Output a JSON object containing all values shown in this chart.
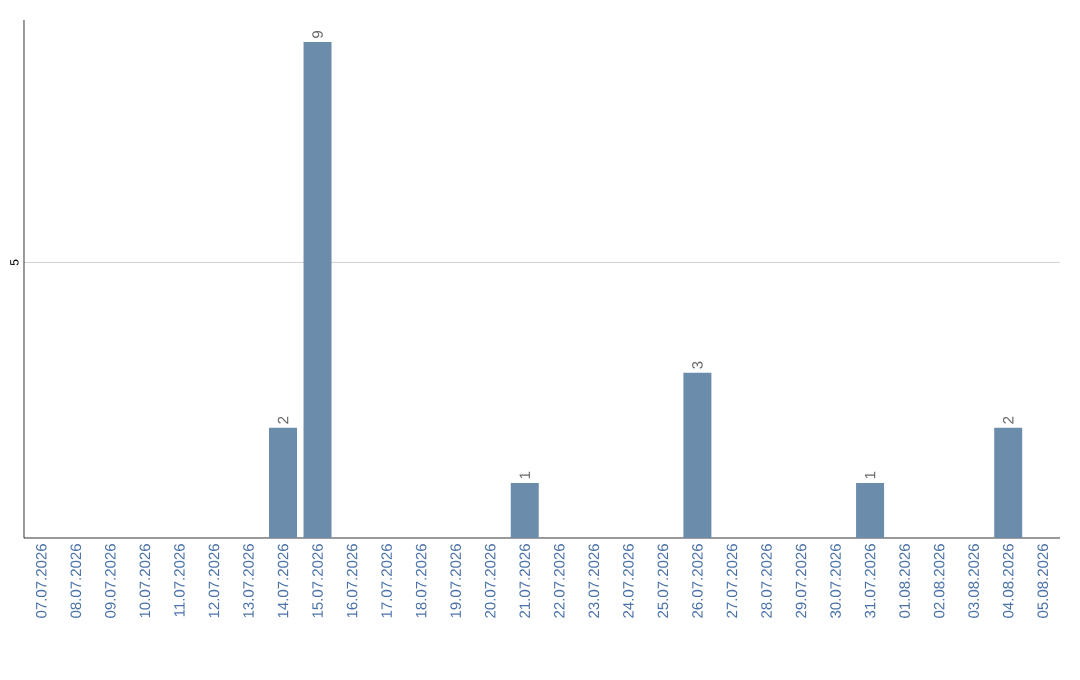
{
  "chart_data": {
    "type": "bar",
    "categories": [
      "07.07.2026",
      "08.07.2026",
      "09.07.2026",
      "10.07.2026",
      "11.07.2026",
      "12.07.2026",
      "13.07.2026",
      "14.07.2026",
      "15.07.2026",
      "16.07.2026",
      "17.07.2026",
      "18.07.2026",
      "19.07.2026",
      "20.07.2026",
      "21.07.2026",
      "22.07.2026",
      "23.07.2026",
      "24.07.2026",
      "25.07.2026",
      "26.07.2026",
      "27.07.2026",
      "28.07.2026",
      "29.07.2026",
      "30.07.2026",
      "31.07.2026",
      "01.08.2026",
      "02.08.2026",
      "03.08.2026",
      "04.08.2026",
      "05.08.2026"
    ],
    "values": [
      0,
      0,
      0,
      0,
      0,
      0,
      0,
      2,
      9,
      0,
      0,
      0,
      0,
      0,
      1,
      0,
      0,
      0,
      0,
      3,
      0,
      0,
      0,
      0,
      1,
      0,
      0,
      0,
      2,
      0
    ],
    "value_labels": [
      null,
      null,
      null,
      null,
      null,
      null,
      null,
      "2",
      "9",
      null,
      null,
      null,
      null,
      null,
      "1",
      null,
      null,
      null,
      null,
      "3",
      null,
      null,
      null,
      null,
      "1",
      null,
      null,
      null,
      "2",
      null
    ],
    "color": "#6b8cab",
    "ylim": [
      0,
      9.4
    ],
    "yticks": [
      5
    ],
    "grid": "y"
  }
}
